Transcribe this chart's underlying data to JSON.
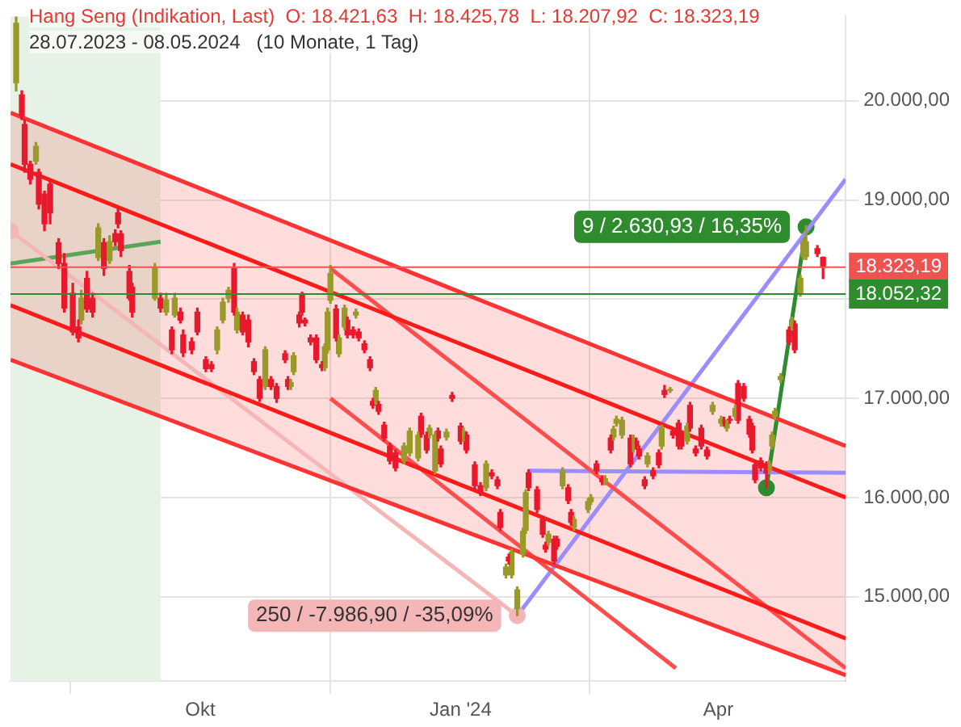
{
  "chart_data": {
    "type": "candlestick",
    "title": "Hang Seng (Indikation, Last)  O: 18.421,63  H: 18.425,78  L: 18.207,92  C: 18.323,19",
    "subtitle": "28.07.2023 - 08.05.2024   (10 Monate, 1 Tag)",
    "x": [
      "2023-07-28",
      "2023-07-30",
      "2023-07-31",
      "2023-08-02",
      "2023-08-04",
      "2023-08-05",
      "2023-08-07",
      "2023-08-09",
      "2023-08-12",
      "2023-08-14",
      "2023-08-17",
      "2023-08-19",
      "2023-08-20",
      "2023-08-22",
      "2023-08-24",
      "2023-08-26",
      "2023-08-28",
      "2023-08-30",
      "2023-09-01",
      "2023-09-02",
      "2023-09-03",
      "2023-09-06",
      "2023-09-07",
      "2023-09-15",
      "2023-09-17",
      "2023-09-19",
      "2023-09-21",
      "2023-09-22",
      "2023-09-24",
      "2023-09-25",
      "2023-09-28",
      "2023-09-30",
      "2023-10-03",
      "2023-10-05",
      "2023-10-07",
      "2023-10-09",
      "2023-10-11",
      "2023-10-13",
      "2023-10-14",
      "2023-10-16",
      "2023-10-18",
      "2023-10-20",
      "2023-10-22",
      "2023-10-24",
      "2023-10-26",
      "2023-10-28",
      "2023-10-31",
      "2023-11-01",
      "2023-11-02",
      "2023-11-03",
      "2023-11-05",
      "2023-11-06",
      "2023-11-07",
      "2023-11-09",
      "2023-11-11",
      "2023-11-13",
      "2023-11-14",
      "2023-11-15",
      "2023-11-16",
      "2023-11-18",
      "2023-11-19",
      "2023-11-21",
      "2023-11-22",
      "2023-11-24",
      "2023-11-25",
      "2023-11-26",
      "2023-11-28",
      "2023-11-30",
      "2023-12-01",
      "2023-12-02",
      "2023-12-03",
      "2023-12-05",
      "2023-12-07",
      "2023-12-09",
      "2023-12-12",
      "2023-12-14",
      "2023-12-17",
      "2023-12-18",
      "2023-12-20",
      "2023-12-21",
      "2023-12-23",
      "2023-12-24",
      "2023-12-25",
      "2023-12-27",
      "2023-12-29",
      "2024-01-01",
      "2024-01-02",
      "2024-01-03",
      "2024-01-06",
      "2024-01-08",
      "2024-01-10",
      "2024-01-12",
      "2024-01-14",
      "2024-01-15",
      "2024-01-17",
      "2024-01-18",
      "2024-01-19",
      "2024-01-21",
      "2024-01-23",
      "2024-01-24",
      "2024-01-25",
      "2024-01-28",
      "2024-01-30",
      "2024-01-31",
      "2024-02-01",
      "2024-02-03",
      "2024-02-04",
      "2024-02-06",
      "2024-02-08",
      "2024-02-09",
      "2024-02-10",
      "2024-02-15",
      "2024-02-16",
      "2024-02-18",
      "2024-02-20",
      "2024-02-21",
      "2024-02-23",
      "2024-02-24",
      "2024-02-25",
      "2024-02-27",
      "2024-03-01",
      "2024-03-02",
      "2024-03-03",
      "2024-03-04",
      "2024-03-06",
      "2024-03-07",
      "2024-03-09",
      "2024-03-11",
      "2024-03-12",
      "2024-03-13",
      "2024-03-15",
      "2024-03-16",
      "2024-03-18",
      "2024-03-19",
      "2024-03-21",
      "2024-03-22",
      "2024-03-24",
      "2024-03-26",
      "2024-03-28",
      "2024-03-30",
      "2024-04-02",
      "2024-04-03",
      "2024-04-04",
      "2024-04-05",
      "2024-04-07",
      "2024-04-08",
      "2024-04-10",
      "2024-04-12",
      "2024-04-13",
      "2024-04-14",
      "2024-04-16",
      "2024-04-18",
      "2024-04-19",
      "2024-04-20",
      "2024-04-21",
      "2024-04-23",
      "2024-04-26",
      "2024-04-27",
      "2024-04-28",
      "2024-04-30",
      "2024-05-01",
      "2024-05-02",
      "2024-05-06",
      "2024-05-08"
    ],
    "ohlc": [
      [
        20180,
        20850,
        20100,
        20780
      ],
      [
        20060,
        20100,
        19810,
        19850
      ],
      [
        19760,
        19810,
        19280,
        19360
      ],
      [
        19360,
        19390,
        19160,
        19210
      ],
      [
        19390,
        19580,
        19360,
        19540
      ],
      [
        19280,
        19310,
        18910,
        18960
      ],
      [
        19060,
        19090,
        18690,
        18760
      ],
      [
        19160,
        19210,
        18760,
        18870
      ],
      [
        18570,
        18610,
        18310,
        18360
      ],
      [
        18360,
        18460,
        17870,
        17910
      ],
      [
        18060,
        18160,
        17640,
        17670
      ],
      [
        17720,
        17790,
        17570,
        17610
      ],
      [
        17790,
        18090,
        17750,
        18010
      ],
      [
        18210,
        18280,
        17870,
        17900
      ],
      [
        18010,
        18060,
        17820,
        17870
      ],
      [
        18420,
        18760,
        18390,
        18720
      ],
      [
        18570,
        18610,
        18240,
        18310
      ],
      [
        18390,
        18640,
        18360,
        18580
      ],
      [
        18660,
        18700,
        18540,
        18580
      ],
      [
        18870,
        18910,
        18720,
        18760
      ],
      [
        18660,
        18690,
        18430,
        18490
      ],
      [
        18280,
        18340,
        17990,
        18010
      ],
      [
        18120,
        18160,
        17820,
        17870
      ],
      [
        18010,
        18360,
        17990,
        18310
      ],
      [
        18010,
        18060,
        17870,
        17910
      ],
      [
        17870,
        18060,
        17840,
        17990
      ],
      [
        17690,
        17720,
        17450,
        17490
      ],
      [
        17840,
        18060,
        17820,
        18010
      ],
      [
        17870,
        17910,
        17760,
        17790
      ],
      [
        17640,
        17690,
        17420,
        17460
      ],
      [
        17570,
        17610,
        17450,
        17490
      ],
      [
        17870,
        17910,
        17640,
        17670
      ],
      [
        17390,
        17420,
        17270,
        17300
      ],
      [
        17340,
        17370,
        17270,
        17300
      ],
      [
        17490,
        17720,
        17450,
        17690
      ],
      [
        17790,
        18010,
        17760,
        17970
      ],
      [
        18010,
        18120,
        17970,
        18090
      ],
      [
        18310,
        18360,
        17840,
        17870
      ],
      [
        17690,
        17910,
        17660,
        17870
      ],
      [
        17840,
        17870,
        17640,
        17670
      ],
      [
        17790,
        17840,
        17520,
        17570
      ],
      [
        17370,
        17400,
        17240,
        17270
      ],
      [
        17190,
        17220,
        16970,
        17000
      ],
      [
        17120,
        17520,
        17090,
        17490
      ],
      [
        17190,
        17220,
        17090,
        17120
      ],
      [
        17120,
        17150,
        16960,
        17000
      ],
      [
        17450,
        17480,
        17360,
        17390
      ],
      [
        17190,
        17220,
        17090,
        17120
      ],
      [
        17120,
        17190,
        17090,
        17160
      ],
      [
        17270,
        17460,
        17240,
        17430
      ],
      [
        17840,
        17870,
        17720,
        17760
      ],
      [
        18040,
        18070,
        17840,
        17870
      ],
      [
        17790,
        17810,
        17730,
        17760
      ],
      [
        17610,
        17640,
        17540,
        17570
      ],
      [
        17610,
        17640,
        17360,
        17390
      ],
      [
        17340,
        17370,
        17280,
        17310
      ],
      [
        17310,
        17550,
        17280,
        17520
      ],
      [
        17490,
        17910,
        17460,
        17870
      ],
      [
        17990,
        18340,
        17960,
        18260
      ],
      [
        17900,
        17940,
        17580,
        17610
      ],
      [
        17450,
        17640,
        17420,
        17610
      ],
      [
        17720,
        17940,
        17690,
        17910
      ],
      [
        17790,
        17820,
        17610,
        17640
      ],
      [
        17690,
        17720,
        17610,
        17640
      ],
      [
        17840,
        17900,
        17810,
        17870
      ],
      [
        17670,
        17700,
        17580,
        17610
      ],
      [
        17550,
        17580,
        17460,
        17490
      ],
      [
        17390,
        17420,
        17280,
        17310
      ],
      [
        16970,
        17000,
        16900,
        16930
      ],
      [
        16970,
        17110,
        16940,
        17080
      ],
      [
        16940,
        16970,
        16840,
        16870
      ],
      [
        16730,
        16760,
        16570,
        16600
      ],
      [
        16520,
        16550,
        16340,
        16370
      ],
      [
        16450,
        16480,
        16270,
        16300
      ],
      [
        16370,
        16550,
        16340,
        16520
      ],
      [
        16450,
        16700,
        16420,
        16670
      ],
      [
        16400,
        16660,
        16370,
        16630
      ],
      [
        16820,
        16850,
        16610,
        16640
      ],
      [
        16630,
        16660,
        16450,
        16480
      ],
      [
        16630,
        16730,
        16600,
        16700
      ],
      [
        16270,
        16660,
        16240,
        16630
      ],
      [
        16670,
        16700,
        16570,
        16600
      ],
      [
        16490,
        16520,
        16310,
        16340
      ],
      [
        16610,
        16690,
        16580,
        16660
      ],
      [
        17030,
        17060,
        16970,
        17000
      ],
      [
        16720,
        16750,
        16540,
        16570
      ],
      [
        16600,
        16700,
        16570,
        16670
      ],
      [
        16630,
        16660,
        16450,
        16480
      ],
      [
        16330,
        16360,
        16090,
        16120
      ],
      [
        16120,
        16150,
        16020,
        16050
      ],
      [
        16100,
        16370,
        16070,
        16340
      ],
      [
        16250,
        16280,
        16190,
        16220
      ],
      [
        16180,
        16210,
        16090,
        16120
      ],
      [
        15850,
        15880,
        15670,
        15700
      ],
      [
        15220,
        15330,
        15190,
        15300
      ],
      [
        15400,
        15430,
        15330,
        15360
      ],
      [
        15220,
        15480,
        15190,
        15450
      ],
      [
        14880,
        15100,
        14810,
        15070
      ],
      [
        15430,
        15690,
        15400,
        15660
      ],
      [
        15670,
        16080,
        15640,
        16050
      ],
      [
        16250,
        16280,
        16070,
        16100
      ],
      [
        16080,
        16110,
        15850,
        15880
      ],
      [
        15780,
        15810,
        15600,
        15630
      ],
      [
        15520,
        15550,
        15450,
        15480
      ],
      [
        15550,
        15660,
        15520,
        15630
      ],
      [
        15580,
        15610,
        15330,
        15360
      ],
      [
        15580,
        15610,
        15480,
        15510
      ],
      [
        16120,
        16300,
        16090,
        16270
      ],
      [
        16100,
        16130,
        15940,
        15970
      ],
      [
        15850,
        15880,
        15720,
        15750
      ],
      [
        15700,
        15810,
        15670,
        15780
      ],
      [
        15880,
        15990,
        15850,
        15960
      ],
      [
        15960,
        16030,
        15930,
        16000
      ],
      [
        16340,
        16370,
        16240,
        16270
      ],
      [
        16190,
        16220,
        16130,
        16160
      ],
      [
        16160,
        16220,
        16130,
        16190
      ],
      [
        16600,
        16630,
        16450,
        16480
      ],
      [
        16610,
        16720,
        16580,
        16690
      ],
      [
        16750,
        16820,
        16720,
        16790
      ],
      [
        16630,
        16810,
        16600,
        16780
      ],
      [
        16600,
        16630,
        16310,
        16340
      ],
      [
        16490,
        16630,
        16460,
        16600
      ],
      [
        16570,
        16600,
        16490,
        16520
      ],
      [
        16490,
        16520,
        16390,
        16420
      ],
      [
        16180,
        16210,
        16090,
        16120
      ],
      [
        16340,
        16450,
        16310,
        16420
      ],
      [
        16270,
        16300,
        16190,
        16220
      ],
      [
        16450,
        16480,
        16300,
        16330
      ],
      [
        16520,
        16730,
        16490,
        16700
      ],
      [
        17080,
        17130,
        17010,
        17040
      ],
      [
        17080,
        17110,
        17060,
        17090
      ],
      [
        16670,
        16700,
        16600,
        16630
      ],
      [
        16750,
        16780,
        16490,
        16520
      ],
      [
        16630,
        16660,
        16490,
        16520
      ],
      [
        16570,
        16750,
        16540,
        16720
      ],
      [
        16930,
        16960,
        16670,
        16700
      ],
      [
        16490,
        16520,
        16420,
        16450
      ],
      [
        16700,
        16730,
        16490,
        16520
      ],
      [
        16480,
        16510,
        16390,
        16420
      ],
      [
        16870,
        16960,
        16840,
        16930
      ],
      [
        16750,
        16820,
        16720,
        16790
      ],
      [
        16780,
        16810,
        16720,
        16750
      ],
      [
        16700,
        16780,
        16670,
        16750
      ],
      [
        16790,
        16820,
        16750,
        16780
      ],
      [
        16820,
        16930,
        16790,
        16900
      ],
      [
        17150,
        17180,
        16750,
        16780
      ],
      [
        17120,
        17150,
        16970,
        17000
      ],
      [
        16790,
        16820,
        16610,
        16640
      ],
      [
        16720,
        16750,
        16450,
        16480
      ],
      [
        16330,
        16360,
        16150,
        16180
      ],
      [
        16370,
        16400,
        16270,
        16300
      ],
      [
        16330,
        16360,
        16100,
        16250
      ],
      [
        16270,
        16370,
        16240,
        16340
      ],
      [
        16520,
        16660,
        16490,
        16630
      ],
      [
        16820,
        16900,
        16790,
        16870
      ],
      [
        17190,
        17250,
        17160,
        17220
      ],
      [
        17690,
        17720,
        17540,
        17570
      ],
      [
        17720,
        17820,
        17690,
        17790
      ],
      [
        17750,
        17780,
        17460,
        17490
      ],
      [
        18060,
        18240,
        18030,
        18210
      ],
      [
        18430,
        18610,
        18400,
        18580
      ],
      [
        18430,
        18740,
        18400,
        18580
      ],
      [
        18510,
        18540,
        18430,
        18460
      ],
      [
        18421.63,
        18425.78,
        18207.92,
        18323.19
      ]
    ],
    "series": [
      {
        "type": "line",
        "x": [
          "2023-07-26",
          "2024-05-16"
        ],
        "values": [
          19360,
          16000
        ],
        "upper": [
          19880,
          16520
        ],
        "lower": [
          17390,
          14210
        ],
        "color": "#ff1a1a"
      },
      {
        "type": "line",
        "x": [
          "2023-07-26",
          "2024-05-16"
        ],
        "values": [
          17940,
          14580
        ],
        "color": "#ff1a1a"
      },
      {
        "type": "line",
        "x": [
          "2023-07-26",
          "2024-05-16"
        ],
        "values": [
          19880,
          16520
        ],
        "color": "#ff3333"
      },
      {
        "type": "line",
        "x": [
          "2023-07-26",
          "2024-05-16"
        ],
        "values": [
          17390,
          14210
        ],
        "color": "#ff3333"
      },
      {
        "type": "line",
        "x": [
          "2023-07-26",
          "2024-01-21"
        ],
        "values": [
          18690,
          14810
        ],
        "color": "#f4b6b6",
        "marker": "circle"
      },
      {
        "type": "line",
        "x": [
          "2023-11-16",
          "2024-05-16"
        ],
        "values": [
          18310,
          14280
        ],
        "color": "#ff4d4d"
      },
      {
        "type": "line",
        "x": [
          "2023-11-16",
          "2024-03-17"
        ],
        "values": [
          17000,
          14280
        ],
        "color": "#ff4d4d"
      },
      {
        "type": "line",
        "x": [
          "2024-01-21",
          "2024-05-16"
        ],
        "values": [
          14810,
          19210
        ],
        "color": "#9b8cff"
      },
      {
        "type": "line",
        "x": [
          "2024-01-25",
          "2024-05-16"
        ],
        "values": [
          16270,
          16250
        ],
        "color": "#9b8cff"
      },
      {
        "type": "line",
        "x": [
          "2023-07-26",
          "2023-09-17"
        ],
        "values": [
          18360,
          18580
        ],
        "color": "#5aa55a"
      },
      {
        "type": "line",
        "x": [
          "2024-04-18",
          "2024-05-02"
        ],
        "values": [
          16100,
          18730
        ],
        "color": "#2e8b2e",
        "marker": "circle"
      }
    ],
    "ref_lines": [
      {
        "axis": "y",
        "value": 18323.19,
        "label": "18.323,19",
        "color": "#ef5350"
      },
      {
        "axis": "y",
        "value": 18052.32,
        "label": "18.052,32",
        "color": "#2e8b2e"
      }
    ],
    "bands": [
      {
        "axis": "x",
        "from": "2023-07-26",
        "to": "2023-09-17",
        "color": "#e6f2e6"
      }
    ],
    "annotations": [
      {
        "text": "9 / 2.630,93 / 16,35%",
        "x": "2024-05-02",
        "y": 18730
      },
      {
        "text": "250 / -7.986,90 / -35,09%",
        "x": "2024-01-21",
        "y": 14810
      }
    ],
    "xlim": [
      "2023-07-26",
      "2024-05-16"
    ],
    "xticks": [
      {
        "value": "2023-10-01",
        "label": "Okt"
      },
      {
        "value": "2024-01-01",
        "label": "Jan '24"
      },
      {
        "value": "2024-04-01",
        "label": "Apr"
      }
    ],
    "ylim": [
      14150,
      20850
    ],
    "yticks": [
      {
        "value": 15000,
        "label": "15.000,00"
      },
      {
        "value": 16000,
        "label": "16.000,00"
      },
      {
        "value": 17000,
        "label": "17.000,00"
      },
      {
        "value": 18000,
        "label": null
      },
      {
        "value": 19000,
        "label": "19.000,00"
      },
      {
        "value": 20000,
        "label": "20.000,00"
      }
    ],
    "grid": true,
    "legend": false
  }
}
